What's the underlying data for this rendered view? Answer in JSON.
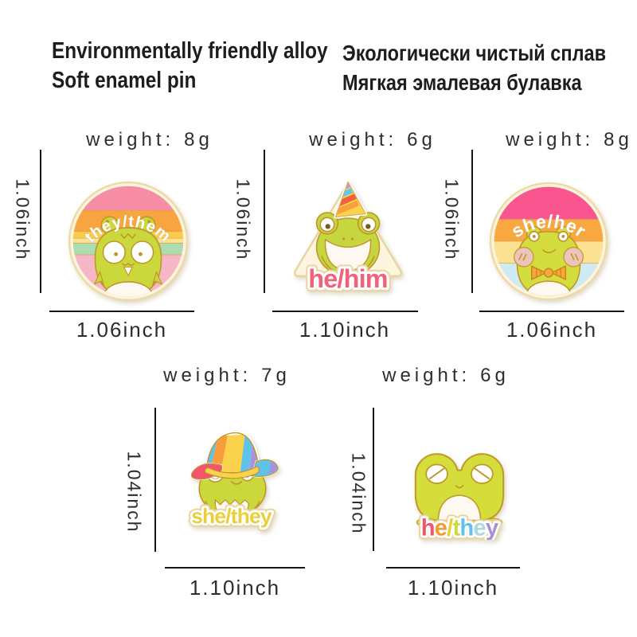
{
  "header": {
    "en_line1": "Environmentally friendly alloy",
    "en_line2": "Soft enamel pin",
    "ru_line1": "Экологически чистый сплав",
    "ru_line2": "Мягкая эмалевая булавка"
  },
  "pins": [
    {
      "name": "they-them",
      "label": "they/them",
      "weight_label": "weight:",
      "weight_value": "8g",
      "height_in": "1.06inch",
      "width_in": "1.06inch"
    },
    {
      "name": "he-him",
      "label": "he/him",
      "weight_label": "weight:",
      "weight_value": "6g",
      "height_in": "1.06inch",
      "width_in": "1.10inch"
    },
    {
      "name": "she-her",
      "label": "she/her",
      "weight_label": "weight:",
      "weight_value": "8g",
      "height_in": "1.06inch",
      "width_in": "1.06inch"
    },
    {
      "name": "she-they",
      "label": "she/they",
      "weight_label": "weight:",
      "weight_value": "7g",
      "height_in": "1.04inch",
      "width_in": "1.10inch"
    },
    {
      "name": "he-they",
      "label": "he/they",
      "weight_label": "weight:",
      "weight_value": "6g",
      "height_in": "1.04inch",
      "width_in": "1.10inch",
      "letters": [
        {
          "ch": "h",
          "color": "#f0546e"
        },
        {
          "ch": "e",
          "color": "#f59a31"
        },
        {
          "ch": "/",
          "color": "#e9cf35"
        },
        {
          "ch": "t",
          "color": "#ccd93f"
        },
        {
          "ch": "h",
          "color": "#5fc3e8"
        },
        {
          "ch": "e",
          "color": "#aed7de"
        },
        {
          "ch": "y",
          "color": "#a98fd6"
        }
      ]
    }
  ],
  "colors": {
    "frog_green": "#cbd83c",
    "outline_gold": "#c1952b",
    "rim_cream": "#f0ddad",
    "backing_cream": "#fdf5de",
    "belly_white": "#fdf9f0",
    "arch_text_white": "#ffffff",
    "he_him_text": "#f2607a",
    "she_they_text": "#e9cf3a",
    "stripe_pink": "#f78da4",
    "stripe_orange": "#f8a43f",
    "stripe_yellow": "#fccb4b",
    "stripe_green": "#abdcb4",
    "stripe_hot_pink": "#f95690",
    "stripe_light_blue": "#cfeaf2",
    "dimension_line": "#161616"
  }
}
